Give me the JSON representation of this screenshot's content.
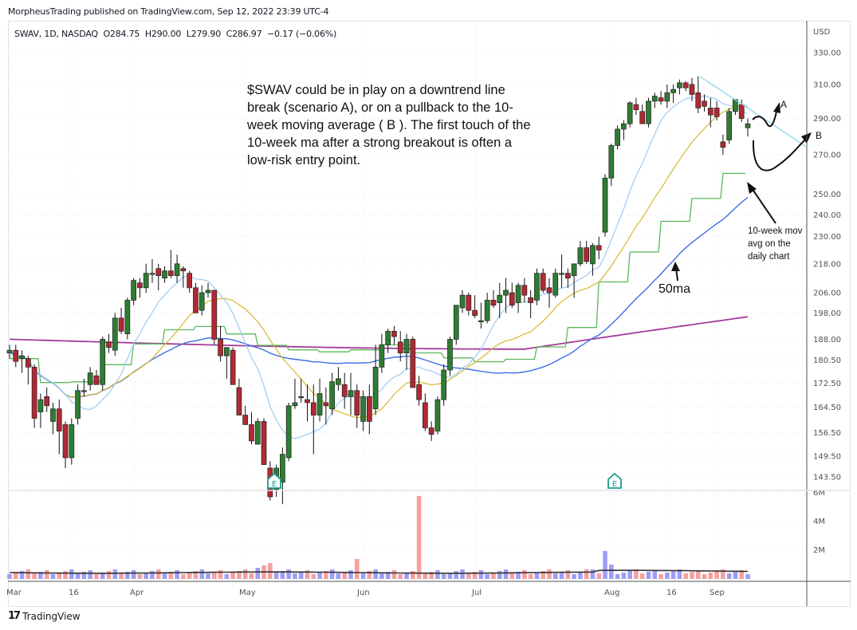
{
  "header": {
    "published": "MorpheusTrading published on TradingView.com, Sep 12, 2022 23:39 UTC-4"
  },
  "legend": {
    "symbol": "SWAV, 1D, NASDAQ",
    "open": "O284.75",
    "high": "H290.00",
    "low": "L279.90",
    "close": "C286.97",
    "change": "−0.17 (−0.06%)"
  },
  "annotations": {
    "note": "$SWAV could be in play on a downtrend line break  (scenario A), or on a pullback to the 10-week moving average ( B ).  The first touch of the 10-week ma after a strong breakout is often a low-risk entry point.",
    "label_50ma": "50ma",
    "label_10week": "10-week mov avg on the daily chart",
    "label_a": "A",
    "label_b": "B",
    "earnings_marker": "E"
  },
  "footer": {
    "brand": "TradingView",
    "brand_mark": "17"
  },
  "colors": {
    "up_candle": "#2e7d32",
    "down_candle": "#b22833",
    "volume_up": "#9e9ef5",
    "volume_down": "#f5a0a0",
    "ma_light_blue": "#a5cdf5",
    "ma_yellow": "#d9bd3c",
    "ma_blue": "#3d6ee6",
    "ma_green_step": "#5cb85c",
    "ma_purple": "#a53c9a",
    "trendline": "#7fd8e8",
    "earnings": "#1a9e8a"
  },
  "chart_data": {
    "type": "candlestick",
    "title": "SWAV, 1D, NASDAQ",
    "currency": "USD",
    "y_scale": "log",
    "y_ticks": [
      330.0,
      310.0,
      290.0,
      270.0,
      250.0,
      240.0,
      230.0,
      218.0,
      206.0,
      198.0,
      188.0,
      180.5,
      172.5,
      164.5,
      156.5,
      149.5,
      143.5
    ],
    "volume_ticks": [
      "6M",
      "4M",
      "2M"
    ],
    "x_ticks": [
      "Mar",
      "16",
      "Apr",
      "May",
      "Jun",
      "Jul",
      "Aug",
      "16",
      "Sep"
    ],
    "last_bar": {
      "open": 284.75,
      "high": 290.0,
      "low": 279.9,
      "close": 286.97,
      "change": -0.17,
      "change_pct": -0.06
    },
    "series": [
      {
        "name": "10-day MA",
        "color": "#a5cdf5"
      },
      {
        "name": "20-day MA",
        "color": "#d9bd3c"
      },
      {
        "name": "50-day MA",
        "color": "#3d6ee6"
      },
      {
        "name": "10-week MA (daily)",
        "color": "#5cb85c"
      },
      {
        "name": "200-day MA",
        "color": "#a53c9a"
      },
      {
        "name": "Volume",
        "color": "#9e9ef5"
      },
      {
        "name": "Volume MA",
        "color": "#333333"
      }
    ],
    "candles": [
      [
        183,
        186,
        181,
        184
      ],
      [
        184,
        186,
        178,
        180
      ],
      [
        181,
        184,
        176,
        182
      ],
      [
        181,
        182,
        172,
        178
      ],
      [
        178,
        179,
        158,
        161
      ],
      [
        163,
        169,
        158,
        167
      ],
      [
        168,
        171,
        163,
        165
      ],
      [
        160,
        166,
        156,
        164
      ],
      [
        164,
        167,
        150,
        157
      ],
      [
        159,
        160,
        146,
        149
      ],
      [
        149,
        161,
        147,
        159
      ],
      [
        161,
        172,
        159,
        170
      ],
      [
        170,
        174,
        168,
        170
      ],
      [
        172,
        178,
        170,
        176
      ],
      [
        175,
        177,
        172,
        172
      ],
      [
        172,
        189,
        170,
        188
      ],
      [
        187,
        190,
        183,
        185
      ],
      [
        184,
        198,
        182,
        196
      ],
      [
        196,
        200,
        190,
        191
      ],
      [
        190,
        204,
        188,
        203
      ],
      [
        203,
        212,
        201,
        211
      ],
      [
        210,
        212,
        204,
        208
      ],
      [
        208,
        218,
        206,
        214
      ],
      [
        214,
        220,
        210,
        214
      ],
      [
        216,
        218,
        207,
        213
      ],
      [
        212,
        217,
        210,
        215
      ],
      [
        215,
        224,
        212,
        213
      ],
      [
        213,
        222,
        210,
        218
      ],
      [
        216,
        217,
        208,
        215
      ],
      [
        214,
        215,
        206,
        208
      ],
      [
        208,
        210,
        198,
        198
      ],
      [
        199,
        209,
        197,
        206
      ],
      [
        206,
        210,
        204,
        207
      ],
      [
        207,
        207,
        186,
        188
      ],
      [
        188,
        193,
        180,
        182
      ],
      [
        182,
        184,
        174,
        185
      ],
      [
        184,
        185,
        172,
        172
      ],
      [
        171,
        174,
        162,
        162
      ],
      [
        162,
        165,
        159,
        159
      ],
      [
        159,
        163,
        153,
        154
      ],
      [
        153,
        161,
        153,
        160
      ],
      [
        160,
        161,
        150,
        147
      ],
      [
        146,
        148,
        137,
        138
      ],
      [
        140,
        147,
        138,
        146
      ],
      [
        142,
        152,
        136,
        150
      ],
      [
        149,
        166,
        148,
        165
      ],
      [
        165,
        174,
        164,
        166
      ],
      [
        168,
        174,
        166,
        168
      ],
      [
        167,
        172,
        160,
        166
      ],
      [
        166,
        172,
        150,
        162
      ],
      [
        162,
        174,
        160,
        169
      ],
      [
        166,
        171,
        159,
        165
      ],
      [
        164,
        176,
        162,
        173
      ],
      [
        172,
        178,
        170,
        174
      ],
      [
        172,
        176,
        164,
        168
      ],
      [
        168,
        176,
        162,
        170
      ],
      [
        170,
        172,
        158,
        162
      ],
      [
        160,
        170,
        157,
        168
      ],
      [
        168,
        172,
        156,
        160
      ],
      [
        164,
        186,
        162,
        178
      ],
      [
        178,
        190,
        176,
        186
      ],
      [
        186,
        192,
        183,
        191
      ],
      [
        191,
        193,
        186,
        189
      ],
      [
        187,
        191,
        180,
        183
      ],
      [
        183,
        190,
        177,
        188
      ],
      [
        188,
        189,
        171,
        171
      ],
      [
        172,
        175,
        165,
        167
      ],
      [
        166,
        169,
        157,
        158
      ],
      [
        158,
        160,
        154,
        156
      ],
      [
        157,
        168,
        156,
        167
      ],
      [
        167,
        179,
        165,
        177
      ],
      [
        177,
        189,
        175,
        188
      ],
      [
        188,
        200,
        186,
        201
      ],
      [
        200,
        207,
        198,
        205
      ],
      [
        205,
        206,
        197,
        199
      ],
      [
        199,
        205,
        196,
        197
      ],
      [
        195,
        202,
        192,
        195
      ],
      [
        195,
        206,
        194,
        203
      ],
      [
        203,
        207,
        200,
        201
      ],
      [
        202,
        210,
        196,
        205
      ],
      [
        205,
        212,
        198,
        207
      ],
      [
        206,
        210,
        200,
        201
      ],
      [
        202,
        210,
        198,
        209
      ],
      [
        209,
        212,
        202,
        205
      ],
      [
        204,
        207,
        196,
        202
      ],
      [
        203,
        216,
        201,
        214
      ],
      [
        214,
        216,
        206,
        207
      ],
      [
        208,
        212,
        200,
        206
      ],
      [
        205,
        216,
        204,
        214
      ],
      [
        214,
        222,
        208,
        214
      ],
      [
        214,
        216,
        208,
        212
      ],
      [
        213,
        218,
        204,
        218
      ],
      [
        218,
        228,
        217,
        225
      ],
      [
        225,
        228,
        218,
        219
      ],
      [
        218,
        227,
        213,
        226
      ],
      [
        226,
        230,
        220,
        224
      ],
      [
        232,
        260,
        230,
        258
      ],
      [
        258,
        276,
        254,
        275
      ],
      [
        275,
        286,
        273,
        284
      ],
      [
        284,
        289,
        278,
        287
      ],
      [
        287,
        300,
        285,
        299
      ],
      [
        298,
        302,
        292,
        295
      ],
      [
        294,
        298,
        287,
        287
      ],
      [
        287,
        302,
        285,
        300
      ],
      [
        300,
        305,
        296,
        303
      ],
      [
        302,
        306,
        298,
        300
      ],
      [
        300,
        310,
        296,
        305
      ],
      [
        305,
        310,
        299,
        307
      ],
      [
        308,
        313,
        304,
        311
      ],
      [
        311,
        312,
        306,
        308
      ],
      [
        310,
        314,
        300,
        304
      ],
      [
        305,
        315,
        293,
        296
      ],
      [
        300,
        304,
        294,
        297
      ],
      [
        296,
        302,
        285,
        292
      ],
      [
        296,
        300,
        289,
        291
      ],
      [
        277,
        281,
        270,
        274
      ],
      [
        278,
        296,
        276,
        294
      ],
      [
        294,
        301,
        292,
        301
      ],
      [
        298,
        301,
        288,
        290
      ],
      [
        284.75,
        290,
        279.9,
        286.97
      ]
    ],
    "annotations": [
      "Downtrend line break (scenario A)",
      "Pullback to 10-week MA (B)",
      "50ma",
      "10-week mov avg on the daily chart",
      "Earnings (E) x2"
    ]
  }
}
